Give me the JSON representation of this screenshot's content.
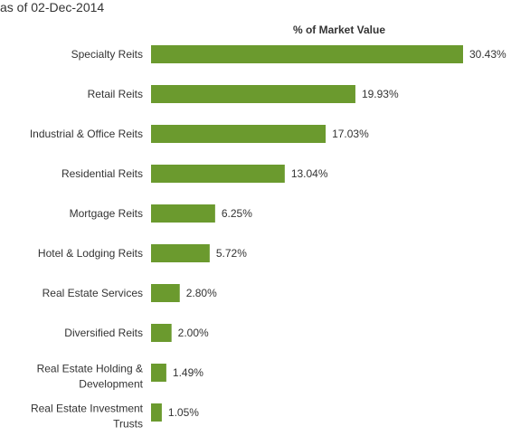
{
  "header": {
    "as_of": "as of 02-Dec-2014"
  },
  "chart_data": {
    "type": "bar",
    "orientation": "horizontal",
    "title": "% of Market Value",
    "categories": [
      [
        "Specialty Reits"
      ],
      [
        "Retail Reits"
      ],
      [
        "Industrial & Office Reits"
      ],
      [
        "Residential Reits"
      ],
      [
        "Mortgage Reits"
      ],
      [
        "Hotel & Lodging Reits"
      ],
      [
        "Real Estate Services"
      ],
      [
        "Diversified Reits"
      ],
      [
        "Real Estate Holding &",
        "Development"
      ],
      [
        "Real Estate Investment",
        "Trusts"
      ]
    ],
    "values": [
      30.43,
      19.93,
      17.03,
      13.04,
      6.25,
      5.72,
      2.8,
      2.0,
      1.49,
      1.05
    ],
    "value_labels": [
      "30.43%",
      "19.93%",
      "17.03%",
      "13.04%",
      "6.25%",
      "5.72%",
      "2.80%",
      "2.00%",
      "1.49%",
      "1.05%"
    ],
    "xlim": [
      0,
      30.43
    ],
    "bar_color": "#6b9a2e",
    "grid": false,
    "legend": "none"
  }
}
